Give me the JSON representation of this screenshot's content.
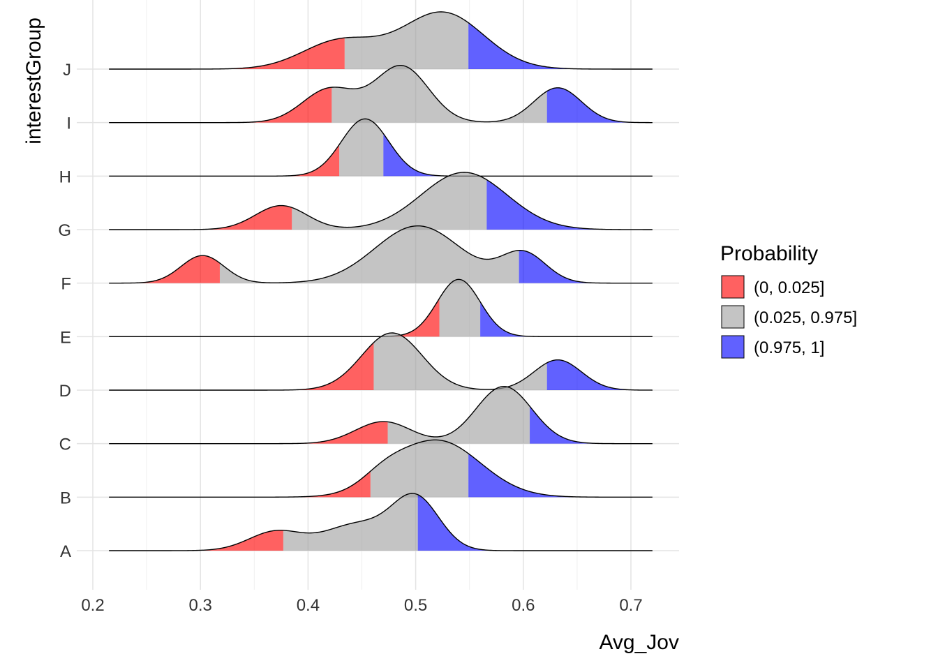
{
  "chart_data": {
    "type": "ridgeline",
    "xlabel": "Avg_Jov",
    "ylabel": "interestGroup",
    "xlim": [
      0.2,
      0.75
    ],
    "x_ticks": [
      "0.2",
      "0.3",
      "0.4",
      "0.5",
      "0.6",
      "0.7"
    ],
    "grid": true,
    "legend": {
      "title": "Probability",
      "position": "right",
      "entries": [
        {
          "label": "(0, 0.025]",
          "color": "#FF0000"
        },
        {
          "label": "(0.025, 0.975]",
          "color": "#A0A0A0"
        },
        {
          "label": "(0.975, 1]",
          "color": "#0000FF"
        }
      ]
    },
    "fill_opacity": 0.62,
    "x_range": [
      0.215,
      0.72
    ],
    "groups": [
      {
        "name": "A",
        "q_low": 0.377,
        "q_high": 0.502,
        "components": [
          {
            "mu": 0.37,
            "sd": 0.025,
            "w": 0.22
          },
          {
            "mu": 0.445,
            "sd": 0.03,
            "w": 0.3
          },
          {
            "mu": 0.5,
            "sd": 0.022,
            "w": 0.6
          }
        ]
      },
      {
        "name": "B",
        "q_low": 0.458,
        "q_high": 0.549,
        "components": [
          {
            "mu": 0.52,
            "sd": 0.04,
            "w": 0.8
          },
          {
            "mu": 0.47,
            "sd": 0.02,
            "w": 0.15
          }
        ]
      },
      {
        "name": "C",
        "q_low": 0.474,
        "q_high": 0.606,
        "components": [
          {
            "mu": 0.47,
            "sd": 0.026,
            "w": 0.32
          },
          {
            "mu": 0.582,
            "sd": 0.026,
            "w": 0.83
          }
        ]
      },
      {
        "name": "D",
        "q_low": 0.461,
        "q_high": 0.622,
        "components": [
          {
            "mu": 0.478,
            "sd": 0.028,
            "w": 0.87
          },
          {
            "mu": 0.632,
            "sd": 0.022,
            "w": 0.46
          }
        ]
      },
      {
        "name": "E",
        "q_low": 0.522,
        "q_high": 0.56,
        "components": [
          {
            "mu": 0.54,
            "sd": 0.02,
            "w": 1.0
          }
        ]
      },
      {
        "name": "F",
        "q_low": 0.318,
        "q_high": 0.596,
        "components": [
          {
            "mu": 0.302,
            "sd": 0.02,
            "w": 0.4
          },
          {
            "mu": 0.502,
            "sd": 0.04,
            "w": 0.83
          },
          {
            "mu": 0.6,
            "sd": 0.021,
            "w": 0.43
          }
        ]
      },
      {
        "name": "G",
        "q_low": 0.385,
        "q_high": 0.566,
        "components": [
          {
            "mu": 0.375,
            "sd": 0.024,
            "w": 0.42
          },
          {
            "mu": 0.545,
            "sd": 0.04,
            "w": 1.0
          }
        ]
      },
      {
        "name": "H",
        "q_low": 0.429,
        "q_high": 0.47,
        "components": [
          {
            "mu": 0.453,
            "sd": 0.022,
            "w": 1.0
          }
        ]
      },
      {
        "name": "I",
        "q_low": 0.422,
        "q_high": 0.622,
        "components": [
          {
            "mu": 0.42,
            "sd": 0.025,
            "w": 0.5
          },
          {
            "mu": 0.487,
            "sd": 0.025,
            "w": 0.84
          },
          {
            "mu": 0.632,
            "sd": 0.022,
            "w": 0.52
          }
        ]
      },
      {
        "name": "J",
        "q_low": 0.434,
        "q_high": 0.549,
        "components": [
          {
            "mu": 0.43,
            "sd": 0.035,
            "w": 0.5
          },
          {
            "mu": 0.525,
            "sd": 0.038,
            "w": 1.0
          }
        ]
      }
    ]
  }
}
